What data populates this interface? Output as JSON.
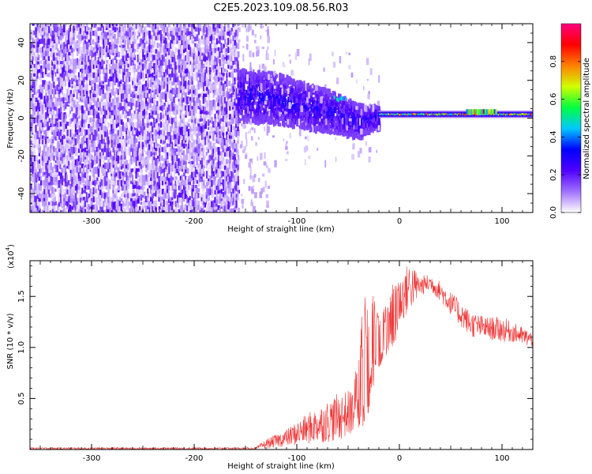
{
  "title": "C2E5.2023.109.08.56.R03",
  "chart_data": [
    {
      "type": "heatmap",
      "xlabel": "Height of straight line (km)",
      "ylabel": "Frequency (Hz)",
      "xlim": [
        -360,
        130
      ],
      "ylim": [
        -50,
        50
      ],
      "xticks": [
        -300,
        -200,
        -100,
        0,
        100
      ],
      "yticks": [
        -40,
        -20,
        0,
        20,
        40
      ],
      "colorbar": {
        "label": "Normalized spectral amplitude",
        "range": [
          0.0,
          1.0
        ],
        "ticks": [
          0.0,
          0.2,
          0.4,
          0.6,
          0.8
        ],
        "colormap": [
          "#ffffff",
          "#a070ff",
          "#5000ff",
          "#0000ff",
          "#00c8ff",
          "#00ff40",
          "#d0ff00",
          "#ff8000",
          "#ff0000",
          "#ff0080"
        ]
      },
      "regions": [
        {
          "x_range": [
            -360,
            -158
          ],
          "freq_range": [
            -50,
            50
          ],
          "amplitude": 0.2,
          "pattern": "broadband noise"
        },
        {
          "x_range": [
            -158,
            -20
          ],
          "center_freq": [
            12,
            10,
            6,
            2,
            -2,
            0
          ],
          "center_x": [
            -155,
            -120,
            -90,
            -60,
            -40,
            -25
          ],
          "spread_hz": [
            9,
            9,
            8,
            7,
            6,
            4
          ],
          "amplitude_range": [
            0.15,
            0.35
          ]
        },
        {
          "x_range": [
            -20,
            130
          ],
          "center_freq": 2,
          "spread_hz": 1.5,
          "amplitude_range": [
            0.6,
            0.9
          ],
          "pattern": "narrowband tone"
        }
      ],
      "grid": false
    },
    {
      "type": "line",
      "xlabel": "Height of straight line (km)",
      "ylabel": "SNR (10 * v/v)",
      "y_multiplier": "(x10",
      "y_multiplier_exp": "4",
      "xlim": [
        -360,
        130
      ],
      "ylim": [
        0,
        1.85
      ],
      "xticks": [
        -300,
        -200,
        -100,
        0,
        100
      ],
      "yticks": [
        0.5,
        1.0,
        1.5
      ],
      "ytick_labels": [
        "0.5",
        "1.0",
        "1.5"
      ],
      "series": [
        {
          "color": "#ee3333",
          "envelope_x": [
            -360,
            -140,
            -130,
            -110,
            -90,
            -60,
            -45,
            -35,
            -30,
            -25,
            -20,
            -12,
            -5,
            0,
            10,
            20,
            30,
            40,
            55,
            70,
            85,
            100,
            110,
            120,
            130
          ],
          "envelope_lo": [
            0.0,
            0.0,
            0.01,
            0.03,
            0.05,
            0.08,
            0.15,
            0.2,
            0.35,
            0.6,
            0.7,
            0.95,
            1.0,
            1.2,
            1.35,
            1.5,
            1.55,
            1.45,
            1.25,
            1.1,
            1.08,
            1.05,
            1.05,
            1.02,
            1.0
          ],
          "envelope_hi": [
            0.02,
            0.02,
            0.1,
            0.2,
            0.35,
            0.55,
            0.6,
            1.45,
            1.6,
            1.55,
            1.3,
            1.45,
            1.7,
            1.7,
            1.85,
            1.7,
            1.72,
            1.65,
            1.5,
            1.35,
            1.3,
            1.3,
            1.25,
            1.2,
            1.15
          ]
        }
      ],
      "grid": false
    }
  ]
}
